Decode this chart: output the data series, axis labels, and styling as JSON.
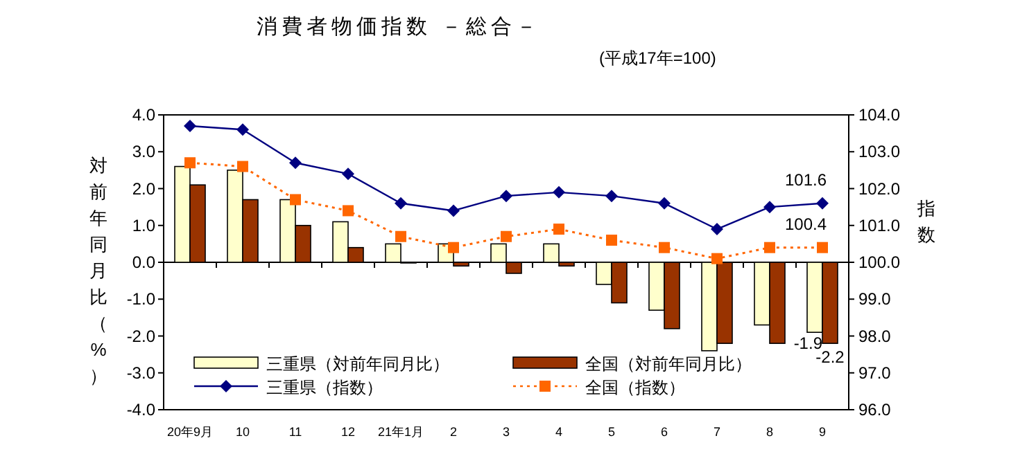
{
  "chart_data": {
    "type": "bar",
    "title": "消費者物価指数 －総合－",
    "subtitle": "(平成17年=100)",
    "ylabel": "対前年同月比（%）",
    "y2label": "指数",
    "legend": "bottom",
    "categories": [
      "20年9月",
      "10",
      "11",
      "12",
      "21年1月",
      "2",
      "3",
      "4",
      "5",
      "6",
      "7",
      "8",
      "9"
    ],
    "ylim": [
      -4,
      4
    ],
    "yticks": [
      {
        "value": -4,
        "label": "-4.0"
      },
      {
        "value": -3,
        "label": "-3.0"
      },
      {
        "value": -2,
        "label": "-2.0"
      },
      {
        "value": -1,
        "label": "-1.0"
      },
      {
        "value": 0,
        "label": "0.0"
      },
      {
        "value": 1,
        "label": "1.0"
      },
      {
        "value": 2,
        "label": "2.0"
      },
      {
        "value": 3,
        "label": "3.0"
      },
      {
        "value": 4,
        "label": "4.0"
      }
    ],
    "y2lim": [
      96,
      104
    ],
    "y2ticks": [
      {
        "value": 96,
        "label": "96.0"
      },
      {
        "value": 97,
        "label": "97.0"
      },
      {
        "value": 98,
        "label": "98.0"
      },
      {
        "value": 99,
        "label": "99.0"
      },
      {
        "value": 100,
        "label": "100.0"
      },
      {
        "value": 101,
        "label": "101.0"
      },
      {
        "value": 102,
        "label": "102.0"
      },
      {
        "value": 103,
        "label": "103.0"
      },
      {
        "value": 104,
        "label": "104.0"
      }
    ],
    "series": [
      {
        "name": "三重県（対前年同月比）",
        "color": "#ffffcc",
        "values": [
          2.6,
          2.5,
          1.7,
          1.1,
          0.5,
          0.5,
          0.5,
          0.5,
          -0.6,
          -1.3,
          -2.4,
          -1.7,
          -1.9
        ],
        "value_labels": [
          null,
          null,
          null,
          null,
          null,
          null,
          null,
          null,
          null,
          null,
          null,
          null,
          "-1.9"
        ]
      },
      {
        "name": "全国（対前年同月比）",
        "color": "#993300",
        "values": [
          2.1,
          1.7,
          1.0,
          0.4,
          0.0,
          -0.1,
          -0.3,
          -0.1,
          -1.1,
          -1.8,
          -2.2,
          -2.2,
          -2.2
        ],
        "value_labels": [
          null,
          null,
          null,
          null,
          null,
          null,
          null,
          null,
          null,
          null,
          null,
          null,
          "-2.2"
        ]
      },
      {
        "name": "三重県（指数）",
        "type": "line",
        "axis": "y2",
        "color": "#000080",
        "marker": "diamond",
        "line_style": "solid",
        "values": [
          103.7,
          103.6,
          102.7,
          102.4,
          101.6,
          101.4,
          101.8,
          101.9,
          101.8,
          101.6,
          100.9,
          101.5,
          101.6
        ],
        "value_labels": [
          null,
          null,
          null,
          null,
          null,
          null,
          null,
          null,
          null,
          null,
          null,
          null,
          "101.6"
        ]
      },
      {
        "name": "全国（指数）",
        "type": "line",
        "axis": "y2",
        "color": "#ff6600",
        "marker": "square",
        "line_style": "dotted",
        "values": [
          102.7,
          102.6,
          101.7,
          101.4,
          100.7,
          100.4,
          100.7,
          100.9,
          100.6,
          100.4,
          100.1,
          100.4,
          100.4
        ],
        "value_labels": [
          null,
          null,
          null,
          null,
          null,
          null,
          null,
          null,
          null,
          null,
          null,
          null,
          "100.4"
        ]
      }
    ]
  }
}
